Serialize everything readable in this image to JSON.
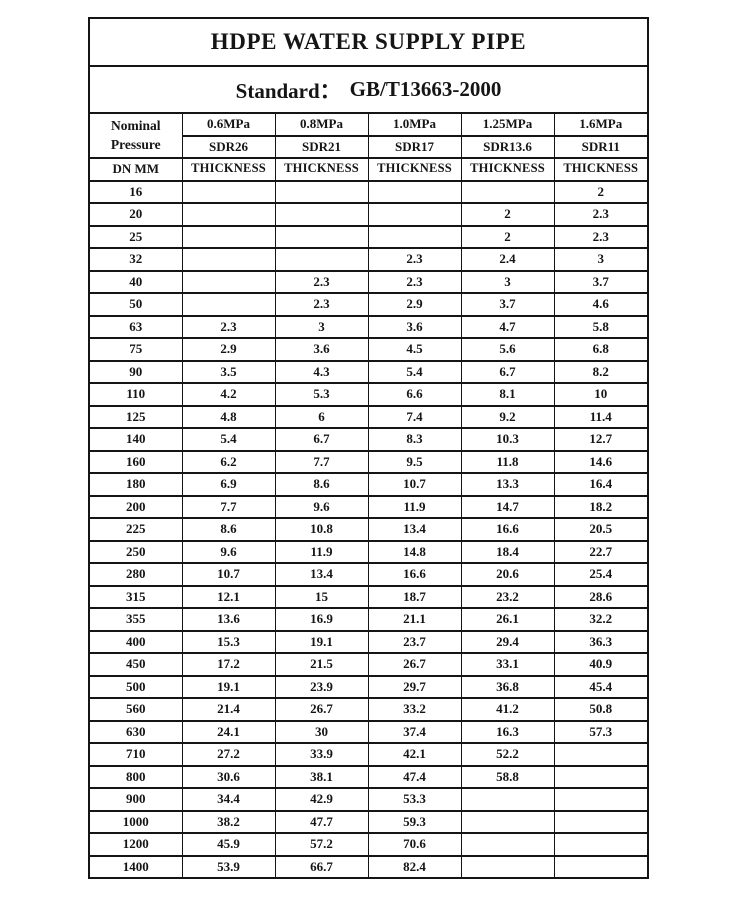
{
  "document": {
    "title": "HDPE WATER SUPPLY PIPE",
    "standard_label": "Standard：",
    "standard_value": "GB/T13663-2000"
  },
  "colors": {
    "text": "#151515",
    "border": "#151515",
    "background": "#ffffff"
  },
  "table": {
    "corner_header": {
      "line1": "Nominal",
      "line2": "Pressure"
    },
    "dn_header": "DN MM",
    "columns": [
      {
        "pressure": "0.6MPa",
        "sdr": "SDR26",
        "thickness_label": "THICKNESS"
      },
      {
        "pressure": "0.8MPa",
        "sdr": "SDR21",
        "thickness_label": "THICKNESS"
      },
      {
        "pressure": "1.0MPa",
        "sdr": "SDR17",
        "thickness_label": "THICKNESS"
      },
      {
        "pressure": "1.25MPa",
        "sdr": "SDR13.6",
        "thickness_label": "THICKNESS"
      },
      {
        "pressure": "1.6MPa",
        "sdr": "SDR11",
        "thickness_label": "THICKNESS"
      }
    ],
    "rows": [
      {
        "dn": "16",
        "values": [
          "",
          "",
          "",
          "",
          "2"
        ]
      },
      {
        "dn": "20",
        "values": [
          "",
          "",
          "",
          "2",
          "2.3"
        ]
      },
      {
        "dn": "25",
        "values": [
          "",
          "",
          "",
          "2",
          "2.3"
        ]
      },
      {
        "dn": "32",
        "values": [
          "",
          "",
          "2.3",
          "2.4",
          "3"
        ]
      },
      {
        "dn": "40",
        "values": [
          "",
          "2.3",
          "2.3",
          "3",
          "3.7"
        ]
      },
      {
        "dn": "50",
        "values": [
          "",
          "2.3",
          "2.9",
          "3.7",
          "4.6"
        ]
      },
      {
        "dn": "63",
        "values": [
          "2.3",
          "3",
          "3.6",
          "4.7",
          "5.8"
        ]
      },
      {
        "dn": "75",
        "values": [
          "2.9",
          "3.6",
          "4.5",
          "5.6",
          "6.8"
        ]
      },
      {
        "dn": "90",
        "values": [
          "3.5",
          "4.3",
          "5.4",
          "6.7",
          "8.2"
        ]
      },
      {
        "dn": "110",
        "values": [
          "4.2",
          "5.3",
          "6.6",
          "8.1",
          "10"
        ]
      },
      {
        "dn": "125",
        "values": [
          "4.8",
          "6",
          "7.4",
          "9.2",
          "11.4"
        ]
      },
      {
        "dn": "140",
        "values": [
          "5.4",
          "6.7",
          "8.3",
          "10.3",
          "12.7"
        ]
      },
      {
        "dn": "160",
        "values": [
          "6.2",
          "7.7",
          "9.5",
          "11.8",
          "14.6"
        ]
      },
      {
        "dn": "180",
        "values": [
          "6.9",
          "8.6",
          "10.7",
          "13.3",
          "16.4"
        ]
      },
      {
        "dn": "200",
        "values": [
          "7.7",
          "9.6",
          "11.9",
          "14.7",
          "18.2"
        ]
      },
      {
        "dn": "225",
        "values": [
          "8.6",
          "10.8",
          "13.4",
          "16.6",
          "20.5"
        ]
      },
      {
        "dn": "250",
        "values": [
          "9.6",
          "11.9",
          "14.8",
          "18.4",
          "22.7"
        ]
      },
      {
        "dn": "280",
        "values": [
          "10.7",
          "13.4",
          "16.6",
          "20.6",
          "25.4"
        ]
      },
      {
        "dn": "315",
        "values": [
          "12.1",
          "15",
          "18.7",
          "23.2",
          "28.6"
        ]
      },
      {
        "dn": "355",
        "values": [
          "13.6",
          "16.9",
          "21.1",
          "26.1",
          "32.2"
        ]
      },
      {
        "dn": "400",
        "values": [
          "15.3",
          "19.1",
          "23.7",
          "29.4",
          "36.3"
        ]
      },
      {
        "dn": "450",
        "values": [
          "17.2",
          "21.5",
          "26.7",
          "33.1",
          "40.9"
        ]
      },
      {
        "dn": "500",
        "values": [
          "19.1",
          "23.9",
          "29.7",
          "36.8",
          "45.4"
        ]
      },
      {
        "dn": "560",
        "values": [
          "21.4",
          "26.7",
          "33.2",
          "41.2",
          "50.8"
        ]
      },
      {
        "dn": "630",
        "values": [
          "24.1",
          "30",
          "37.4",
          "16.3",
          "57.3"
        ]
      },
      {
        "dn": "710",
        "values": [
          "27.2",
          "33.9",
          "42.1",
          "52.2",
          ""
        ]
      },
      {
        "dn": "800",
        "values": [
          "30.6",
          "38.1",
          "47.4",
          "58.8",
          ""
        ]
      },
      {
        "dn": "900",
        "values": [
          "34.4",
          "42.9",
          "53.3",
          "",
          ""
        ]
      },
      {
        "dn": "1000",
        "values": [
          "38.2",
          "47.7",
          "59.3",
          "",
          ""
        ]
      },
      {
        "dn": "1200",
        "values": [
          "45.9",
          "57.2",
          "70.6",
          "",
          ""
        ]
      },
      {
        "dn": "1400",
        "values": [
          "53.9",
          "66.7",
          "82.4",
          "",
          ""
        ]
      }
    ]
  }
}
